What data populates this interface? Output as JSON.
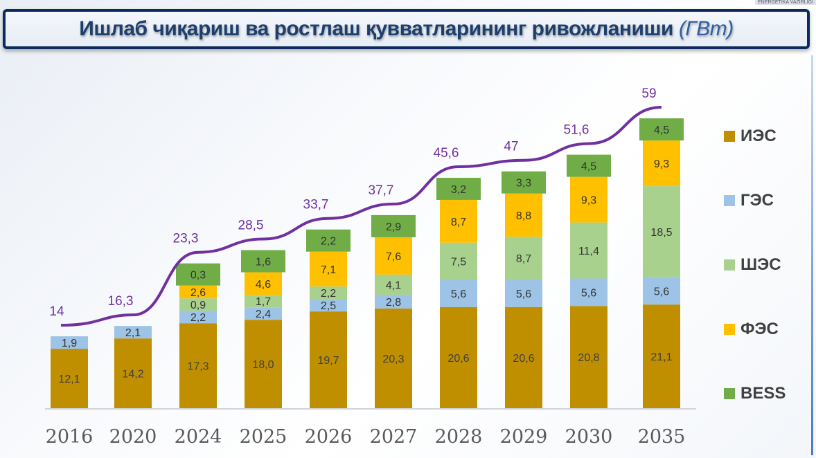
{
  "header": {
    "corner_text": "ENERGETIKA VAZIRLIGI",
    "title": "Ишлаб чиқариш ва ростлаш қувватларининг ривожланиши",
    "unit": "(ГВт)"
  },
  "chart_data": {
    "type": "bar",
    "stacked": true,
    "title": "Ишлаб чиқариш ва ростлаш қувватларининг ривожланиши (ГВт)",
    "categories": [
      "2016",
      "2020",
      "2024",
      "2025",
      "2026",
      "2027",
      "2028",
      "2029",
      "2030",
      "2035"
    ],
    "series": [
      {
        "name": "ИЭС",
        "color": "#bf8f00",
        "values": [
          12.1,
          14.2,
          17.3,
          18.0,
          19.7,
          20.3,
          20.6,
          20.6,
          20.8,
          21.1
        ]
      },
      {
        "name": "ГЭС",
        "color": "#9dc3e6",
        "values": [
          1.9,
          2.1,
          2.2,
          2.4,
          2.5,
          2.8,
          5.6,
          5.6,
          5.6,
          5.6
        ]
      },
      {
        "name": "ШЭС",
        "color": "#a9d18e",
        "values": [
          null,
          null,
          0.9,
          1.7,
          2.2,
          4.1,
          7.5,
          8.7,
          11.4,
          18.5
        ]
      },
      {
        "name": "ФЭС",
        "color": "#ffc000",
        "values": [
          null,
          null,
          2.6,
          4.6,
          7.1,
          7.6,
          8.7,
          8.8,
          9.3,
          9.3
        ]
      },
      {
        "name": "BESS",
        "color": "#70ad47",
        "values": [
          null,
          null,
          0.3,
          1.6,
          2.2,
          2.9,
          3.2,
          3.3,
          4.5,
          4.5
        ]
      }
    ],
    "total_line": {
      "name": "Total",
      "color": "#7030a0",
      "values": [
        14,
        16.3,
        23.3,
        28.5,
        33.7,
        37.7,
        45.6,
        47,
        51.6,
        59
      ]
    },
    "legend_placement": "right",
    "grid": false,
    "xlabel": "",
    "ylabel": ""
  }
}
